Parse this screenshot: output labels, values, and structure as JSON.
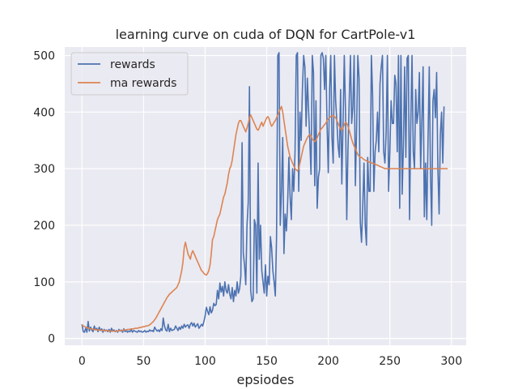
{
  "chart_data": {
    "type": "line",
    "title": "learning curve on cuda of DQN for CartPole-v1",
    "xlabel": "epsiodes",
    "ylabel": "",
    "xlim": [
      -14,
      312
    ],
    "ylim": [
      -12,
      515
    ],
    "xticks": [
      0,
      50,
      100,
      150,
      200,
      250,
      300
    ],
    "yticks": [
      0,
      100,
      200,
      300,
      400,
      500
    ],
    "grid": true,
    "legend_position": "upper-left",
    "colors": {
      "rewards": "#4c72b0",
      "ma_rewards": "#dd8452",
      "background": "#eaeaf2",
      "grid": "#ffffff"
    },
    "legend": [
      "rewards",
      "ma rewards"
    ],
    "series": [
      {
        "name": "rewards",
        "values": [
          25,
          12,
          11,
          18,
          11,
          30,
          13,
          20,
          15,
          12,
          22,
          15,
          18,
          12,
          20,
          14,
          17,
          11,
          16,
          13,
          15,
          12,
          16,
          11,
          18,
          13,
          15,
          12,
          14,
          11,
          16,
          13,
          15,
          11,
          17,
          12,
          15,
          11,
          13,
          12,
          16,
          11,
          14,
          13,
          12,
          11,
          14,
          12,
          13,
          11,
          12,
          14,
          11,
          13,
          12,
          15,
          13,
          14,
          12,
          20,
          16,
          13,
          15,
          12,
          17,
          14,
          36,
          22,
          15,
          13,
          25,
          12,
          18,
          14,
          15,
          16,
          22,
          18,
          14,
          20,
          16,
          22,
          18,
          25,
          20,
          23,
          24,
          18,
          25,
          28,
          22,
          27,
          20,
          23,
          26,
          18,
          21,
          25,
          22,
          30,
          40,
          55,
          48,
          42,
          56,
          45,
          50,
          62,
          58,
          60,
          85,
          70,
          98,
          82,
          92,
          75,
          100,
          85,
          80,
          95,
          78,
          70,
          90,
          65,
          85,
          75,
          100,
          80,
          88,
          110,
          346,
          150,
          130,
          95,
          200,
          240,
          445,
          85,
          65,
          70,
          210,
          200,
          80,
          310,
          140,
          200,
          120,
          100,
          80,
          130,
          75,
          110,
          95,
          180,
          160,
          120,
          100,
          75,
          180,
          500,
          505,
          200,
          260,
          355,
          150,
          220,
          190,
          240,
          320,
          250,
          210,
          300,
          260,
          330,
          500,
          505,
          260,
          400,
          350,
          440,
          500,
          480,
          375,
          460,
          405,
          350,
          290,
          500,
          470,
          270,
          420,
          230,
          285,
          300,
          500,
          505,
          495,
          440,
          500,
          380,
          293,
          440,
          500,
          355,
          310,
          500,
          420,
          382,
          340,
          320,
          440,
          273,
          380,
          500,
          400,
          210,
          335,
          420,
          500,
          380,
          410,
          500,
          270,
          370,
          500,
          460,
          205,
          170,
          235,
          310,
          200,
          165,
          320,
          260,
          260,
          500,
          430,
          260,
          330,
          350,
          400,
          330,
          450,
          480,
          500,
          330,
          310,
          365,
          500,
          260,
          330,
          420,
          380,
          380,
          465,
          450,
          330,
          500,
          230,
          500,
          255,
          340,
          480,
          320,
          495,
          500,
          210,
          380,
          500,
          330,
          300,
          440,
          380,
          400,
          470,
          300,
          385,
          480,
          215,
          310,
          210,
          350,
          480,
          290,
          200,
          420,
          440,
          390,
          470,
          300,
          220,
          360,
          400,
          310,
          410
        ],
        "sampled_every": 1
      },
      {
        "name": "ma rewards",
        "values": [
          24,
          22,
          21,
          20,
          19,
          18,
          18,
          17,
          17,
          16,
          16,
          16,
          15,
          15,
          15,
          15,
          14,
          14,
          14,
          14,
          14,
          14,
          13,
          13,
          13,
          13,
          13,
          13,
          13,
          13,
          14,
          14,
          14,
          14,
          15,
          15,
          15,
          16,
          16,
          16,
          17,
          17,
          17,
          18,
          18,
          18,
          19,
          19,
          20,
          20,
          21,
          21,
          22,
          22,
          23,
          24,
          26,
          28,
          30,
          33,
          36,
          40,
          44,
          48,
          52,
          56,
          60,
          64,
          68,
          72,
          75,
          78,
          80,
          82,
          84,
          86,
          88,
          90,
          95,
          100,
          110,
          120,
          135,
          160,
          170,
          160,
          150,
          145,
          140,
          150,
          155,
          150,
          145,
          140,
          135,
          130,
          125,
          120,
          118,
          115,
          113,
          112,
          115,
          120,
          130,
          150,
          175,
          180,
          190,
          200,
          210,
          215,
          220,
          230,
          240,
          250,
          255,
          265,
          275,
          290,
          300,
          305,
          315,
          330,
          345,
          360,
          370,
          380,
          385,
          385,
          380,
          375,
          370,
          365,
          372,
          380,
          390,
          395,
          390,
          385,
          380,
          375,
          370,
          368,
          372,
          378,
          382,
          375,
          380,
          385,
          390,
          392,
          388,
          380,
          375,
          378,
          382,
          385,
          390,
          395,
          400,
          405,
          410,
          400,
          385,
          370,
          355,
          340,
          330,
          320,
          315,
          310,
          305,
          300,
          298,
          296,
          300,
          310,
          320,
          330,
          340,
          345,
          350,
          355,
          358,
          360,
          358,
          352,
          350,
          348,
          350,
          355,
          360,
          365,
          370,
          372,
          375,
          378,
          380,
          385,
          388,
          390,
          392,
          393,
          394,
          392,
          390,
          385,
          380,
          375,
          370,
          368,
          372,
          378,
          382,
          380,
          375,
          368,
          360,
          352,
          345,
          340,
          335,
          330,
          325,
          322,
          320,
          320,
          318,
          316,
          315,
          314,
          313,
          312,
          311,
          310,
          310,
          309,
          308,
          307,
          306,
          305,
          304,
          303,
          302,
          301,
          300,
          300,
          300,
          300,
          300,
          300,
          300,
          300,
          300,
          300,
          300,
          300,
          300,
          300,
          300,
          300,
          300,
          300,
          300,
          300,
          300,
          300,
          300,
          300,
          300,
          300,
          300,
          300,
          300,
          300,
          300,
          300,
          300,
          300,
          300,
          300,
          300,
          300,
          300,
          300,
          300,
          300,
          300,
          300,
          300,
          300,
          300,
          300,
          300,
          300,
          300,
          300
        ],
        "sampled_every": 1
      }
    ]
  }
}
